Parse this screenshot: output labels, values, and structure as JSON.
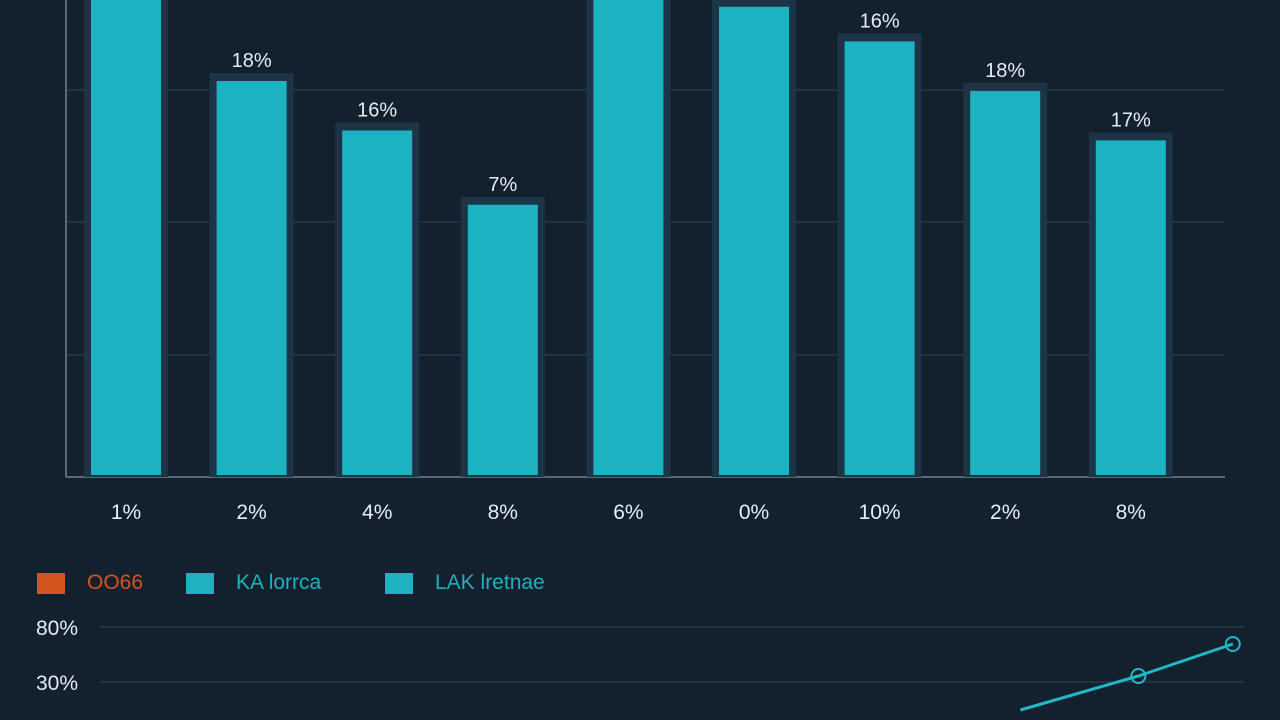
{
  "colors": {
    "background": "#13202e",
    "bar": "#1bb3c2",
    "bar_glow": "#1d3346",
    "grid": "#26384a",
    "axis": "#5b6875",
    "orange": "#d4541f",
    "line": "#1fb8c8"
  },
  "legend": {
    "items": [
      {
        "label": "OO66",
        "color": "#d4541f"
      },
      {
        "label": "KA lorrca",
        "color": "#1fb3c2"
      },
      {
        "label": "LAK lretnae",
        "color": "#1fb3c2"
      }
    ]
  },
  "chart_data": [
    {
      "type": "bar",
      "categories": [
        "1%",
        "2%",
        "4%",
        "8%",
        "6%",
        "0%",
        "10%",
        "2%",
        "8%"
      ],
      "values": [
        100,
        80,
        70,
        55,
        100,
        95,
        88,
        78,
        68
      ],
      "value_labels": [
        "",
        "18%",
        "16%",
        "7%",
        "",
        "",
        "16%",
        "18%",
        "17%"
      ],
      "ylim": [
        0,
        100
      ],
      "grid": true,
      "legend": "bottom-left"
    },
    {
      "type": "line",
      "y_tick_labels": [
        "80%",
        "30%"
      ],
      "series": [
        {
          "points": [
            [
              0.78,
              5
            ],
            [
              0.88,
              22
            ],
            [
              0.96,
              38
            ]
          ]
        }
      ],
      "grid": true
    }
  ]
}
